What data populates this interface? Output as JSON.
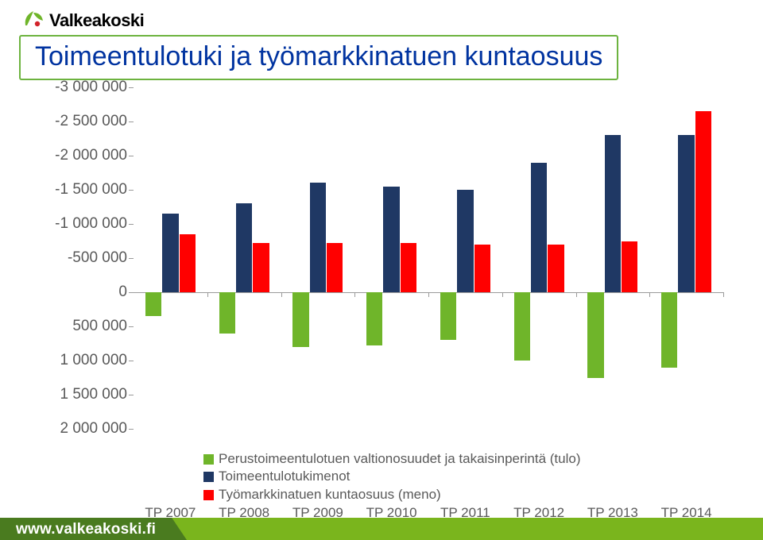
{
  "brand": {
    "name": "Valkeakoski",
    "logo_colors": {
      "leaf": "#6fb52a",
      "berry": "#d2232a"
    }
  },
  "title": "Toimeentulotuki  ja työmarkkinatuen kuntaosuus",
  "chart": {
    "type": "bar",
    "ylim_min": -3000000,
    "ylim_max": 2000000,
    "ytick_step": 500000,
    "y_labels": [
      "-3 000 000",
      "-2 500 000",
      "-2 000 000",
      "-1 500 000",
      "-1 000 000",
      "-500 000",
      "0",
      "500 000",
      "1 000 000",
      "1 500 000",
      "2 000 000"
    ],
    "y_values": [
      -3000000,
      -2500000,
      -2000000,
      -1500000,
      -1000000,
      -500000,
      0,
      500000,
      1000000,
      1500000,
      2000000
    ],
    "reversed_axis": true,
    "categories": [
      "TP 2007",
      "TP 2008",
      "TP 2009",
      "TP 2010",
      "TP 2011",
      "TP 2012",
      "TP 2013",
      "TP 2014"
    ],
    "series": [
      {
        "name": "Perustoimeentulotuen valtionosuudet ja takaisinperintä (tulo)",
        "color": "#6fb52a",
        "values": [
          350000,
          600000,
          800000,
          780000,
          700000,
          1000000,
          1250000,
          1100000
        ]
      },
      {
        "name": "Toimeentulotukimenot",
        "color": "#1f3864",
        "values": [
          -1150000,
          -1300000,
          -1600000,
          -1550000,
          -1500000,
          -1900000,
          -2300000,
          -2300000
        ]
      },
      {
        "name": "Työmarkkinatuen kuntaosuus (meno)",
        "color": "#ff0000",
        "values": [
          -850000,
          -720000,
          -720000,
          -720000,
          -700000,
          -700000,
          -750000,
          -2650000
        ]
      }
    ],
    "background_color": "#ffffff",
    "axis_color": "#9a9a9a",
    "label_color": "#595959",
    "label_fontsize": 19,
    "bars_per_group": 3,
    "bar_width_ratio": 0.22,
    "group_gap_ratio": 0.12
  },
  "legend_items": [
    {
      "swatch": "#6fb52a",
      "label": "Perustoimeentulotuen valtionosuudet ja takaisinperintä (tulo)"
    },
    {
      "swatch": "#1f3864",
      "label": "Toimeentulotukimenot"
    },
    {
      "swatch": "#ff0000",
      "label": "Työmarkkinatuen kuntaosuus (meno)"
    }
  ],
  "footer": {
    "url": "www.valkeakoski.fi",
    "bar_light": "#7ab51d",
    "bar_dark": "#4a7b1f"
  }
}
